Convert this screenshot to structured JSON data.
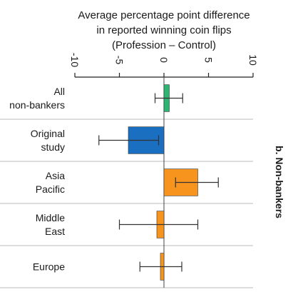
{
  "chart_data": {
    "type": "bar",
    "orientation": "horizontal",
    "title_lines": [
      "Average percentage point difference",
      "in reported winning coin flips",
      "(Profession – Control)"
    ],
    "panel_label": "b. Non-bankers",
    "xlim": [
      -10,
      10
    ],
    "ticks": [
      -10,
      -5,
      0,
      5,
      10
    ],
    "tick_labels": [
      "-10",
      "-5",
      "0",
      "5",
      "10"
    ],
    "grid": false,
    "categories": [
      [
        "All",
        "non-bankers"
      ],
      [
        "Original",
        "study"
      ],
      [
        "Asia",
        "Pacific"
      ],
      [
        "Middle",
        "East"
      ],
      [
        "Europe"
      ]
    ],
    "values": [
      0.6,
      -4.0,
      3.8,
      -0.8,
      -0.4
    ],
    "error_low": [
      -1.0,
      -7.3,
      1.3,
      -5.0,
      -2.7
    ],
    "error_high": [
      2.1,
      -0.6,
      6.1,
      3.8,
      2.0
    ],
    "bar_colors": [
      "#2bb673",
      "#1b6fc0",
      "#f7941d",
      "#f7941d",
      "#f7941d"
    ]
  }
}
